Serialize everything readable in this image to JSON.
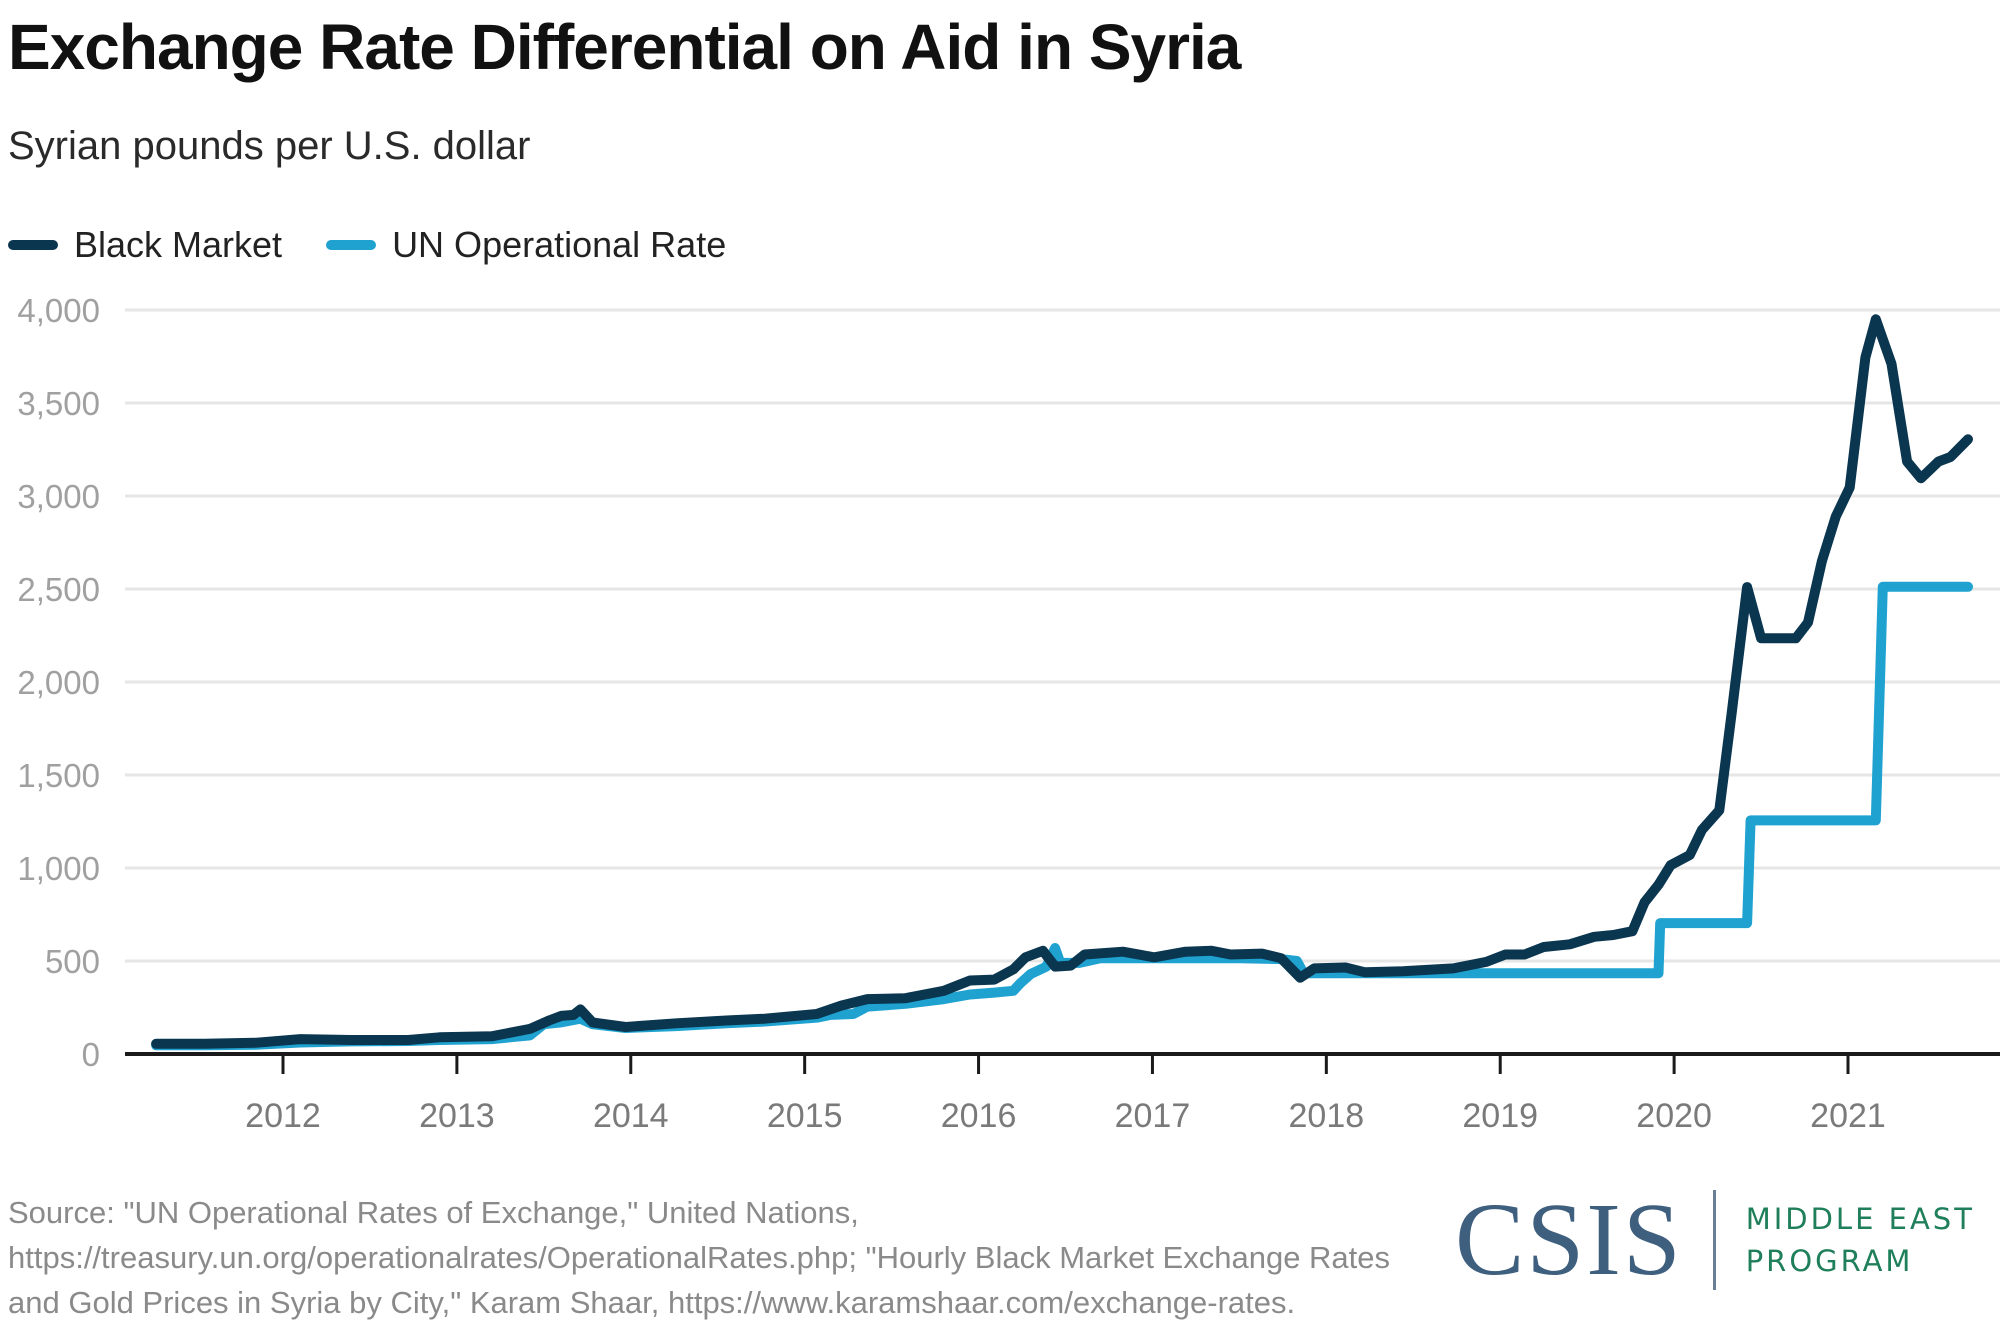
{
  "chart_data": {
    "type": "line",
    "title": "Exchange Rate Differential on Aid in Syria",
    "subtitle": "Syrian pounds per U.S. dollar",
    "xlabel": "",
    "ylabel": "Syrian pounds per U.S. dollar",
    "xlim": [
      2011.08,
      2021.8
    ],
    "ylim": [
      0,
      4000
    ],
    "yticks": [
      0,
      500,
      1000,
      1500,
      2000,
      2500,
      3000,
      3500,
      4000
    ],
    "ytick_labels": [
      "0",
      "500",
      "1,000",
      "1,500",
      "2,000",
      "2,500",
      "3,000",
      "3,500",
      "4,000"
    ],
    "xticks": [
      2012,
      2013,
      2014,
      2015,
      2016,
      2017,
      2018,
      2019,
      2020,
      2021
    ],
    "xtick_labels": [
      "2012",
      "2013",
      "2014",
      "2015",
      "2016",
      "2017",
      "2018",
      "2019",
      "2020",
      "2021"
    ],
    "grid": "horizontal",
    "legend_position": "top-left",
    "series": [
      {
        "name": "UN Operational Rate",
        "color": "#1fa2d0",
        "points": [
          [
            2011.27,
            47
          ],
          [
            2011.55,
            47
          ],
          [
            2011.84,
            50
          ],
          [
            2012.1,
            62
          ],
          [
            2012.39,
            68
          ],
          [
            2012.72,
            70
          ],
          [
            2012.9,
            75
          ],
          [
            2013.2,
            80
          ],
          [
            2013.42,
            100
          ],
          [
            2013.5,
            160
          ],
          [
            2013.6,
            170
          ],
          [
            2013.71,
            190
          ],
          [
            2013.78,
            160
          ],
          [
            2013.97,
            140
          ],
          [
            2014.26,
            150
          ],
          [
            2014.55,
            165
          ],
          [
            2014.77,
            175
          ],
          [
            2015.07,
            195
          ],
          [
            2015.15,
            210
          ],
          [
            2015.28,
            215
          ],
          [
            2015.36,
            255
          ],
          [
            2015.58,
            270
          ],
          [
            2015.8,
            295
          ],
          [
            2015.95,
            320
          ],
          [
            2016.09,
            330
          ],
          [
            2016.2,
            340
          ],
          [
            2016.24,
            380
          ],
          [
            2016.3,
            430
          ],
          [
            2016.39,
            470
          ],
          [
            2016.44,
            570
          ],
          [
            2016.47,
            490
          ],
          [
            2016.58,
            490
          ],
          [
            2016.7,
            515
          ],
          [
            2017.0,
            515
          ],
          [
            2017.5,
            515
          ],
          [
            2017.74,
            510
          ],
          [
            2017.83,
            500
          ],
          [
            2017.87,
            434
          ],
          [
            2018.5,
            434
          ],
          [
            2019.0,
            434
          ],
          [
            2019.5,
            434
          ],
          [
            2019.91,
            434
          ],
          [
            2019.92,
            704
          ],
          [
            2020.42,
            704
          ],
          [
            2020.44,
            1256
          ],
          [
            2021.16,
            1256
          ],
          [
            2021.2,
            2512
          ],
          [
            2021.69,
            2512
          ]
        ]
      },
      {
        "name": "Black Market",
        "color": "#0b3650",
        "points": [
          [
            2011.27,
            55
          ],
          [
            2011.55,
            55
          ],
          [
            2011.84,
            60
          ],
          [
            2012.1,
            80
          ],
          [
            2012.39,
            75
          ],
          [
            2012.72,
            75
          ],
          [
            2012.9,
            90
          ],
          [
            2013.2,
            95
          ],
          [
            2013.42,
            135
          ],
          [
            2013.53,
            180
          ],
          [
            2013.6,
            205
          ],
          [
            2013.67,
            210
          ],
          [
            2013.71,
            240
          ],
          [
            2013.78,
            170
          ],
          [
            2013.97,
            145
          ],
          [
            2014.26,
            165
          ],
          [
            2014.55,
            180
          ],
          [
            2014.77,
            190
          ],
          [
            2015.07,
            215
          ],
          [
            2015.21,
            260
          ],
          [
            2015.36,
            295
          ],
          [
            2015.58,
            300
          ],
          [
            2015.8,
            340
          ],
          [
            2015.95,
            395
          ],
          [
            2016.09,
            400
          ],
          [
            2016.2,
            455
          ],
          [
            2016.27,
            520
          ],
          [
            2016.37,
            555
          ],
          [
            2016.44,
            470
          ],
          [
            2016.53,
            475
          ],
          [
            2016.61,
            535
          ],
          [
            2016.83,
            550
          ],
          [
            2017.01,
            520
          ],
          [
            2017.19,
            550
          ],
          [
            2017.34,
            555
          ],
          [
            2017.45,
            535
          ],
          [
            2017.63,
            540
          ],
          [
            2017.74,
            515
          ],
          [
            2017.85,
            410
          ],
          [
            2017.93,
            460
          ],
          [
            2018.11,
            465
          ],
          [
            2018.22,
            440
          ],
          [
            2018.44,
            445
          ],
          [
            2018.73,
            460
          ],
          [
            2018.92,
            495
          ],
          [
            2019.03,
            535
          ],
          [
            2019.14,
            535
          ],
          [
            2019.25,
            575
          ],
          [
            2019.4,
            590
          ],
          [
            2019.54,
            630
          ],
          [
            2019.65,
            640
          ],
          [
            2019.76,
            660
          ],
          [
            2019.83,
            815
          ],
          [
            2019.91,
            910
          ],
          [
            2019.98,
            1015
          ],
          [
            2020.09,
            1070
          ],
          [
            2020.16,
            1205
          ],
          [
            2020.26,
            1310
          ],
          [
            2020.33,
            1825
          ],
          [
            2020.42,
            2510
          ],
          [
            2020.5,
            2235
          ],
          [
            2020.7,
            2235
          ],
          [
            2020.77,
            2320
          ],
          [
            2020.85,
            2650
          ],
          [
            2020.93,
            2890
          ],
          [
            2021.01,
            3045
          ],
          [
            2021.1,
            3745
          ],
          [
            2021.16,
            3950
          ],
          [
            2021.25,
            3710
          ],
          [
            2021.34,
            3185
          ],
          [
            2021.42,
            3095
          ],
          [
            2021.52,
            3185
          ],
          [
            2021.59,
            3210
          ],
          [
            2021.69,
            3305
          ]
        ]
      }
    ]
  },
  "header": {
    "title": "Exchange Rate Differential on Aid in Syria",
    "subtitle": "Syrian pounds per U.S. dollar"
  },
  "legend": [
    {
      "label": "Black Market",
      "color": "#0b3650"
    },
    {
      "label": "UN Operational Rate",
      "color": "#1fa2d0"
    }
  ],
  "footer": {
    "source": "Source: \"UN Operational Rates of Exchange,\" United Nations, https://treasury.un.org/operationalrates/OperationalRates.php; \"Hourly Black Market Exchange Rates and Gold Prices in Syria by City,\" Karam Shaar, https://www.karamshaar.com/exchange-rates.",
    "logo_main": "CSIS",
    "logo_program_line1": "MIDDLE EAST",
    "logo_program_line2": "PROGRAM"
  }
}
